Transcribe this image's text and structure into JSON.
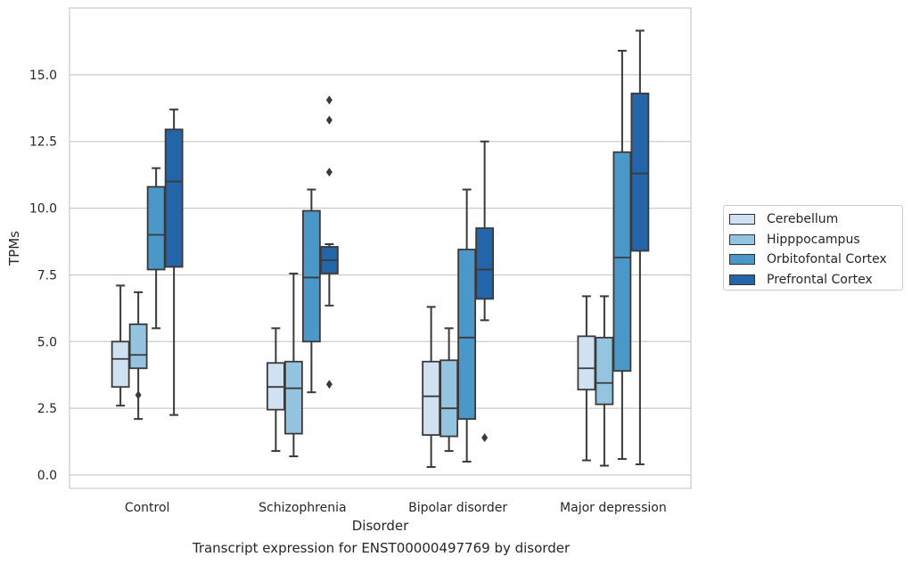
{
  "chart_data": {
    "type": "box",
    "title": "",
    "xlabel": "Disorder",
    "ylabel": "TPMs",
    "ylim": [
      -0.5,
      17.5
    ],
    "yticks": [
      "0.0",
      "2.5",
      "5.0",
      "7.5",
      "10.0",
      "12.5",
      "15.0"
    ],
    "grid": true,
    "legend_position": "right",
    "categories": [
      "Control",
      "Schizophrenia",
      "Bipolar disorder",
      "Major depression"
    ],
    "series": [
      {
        "name": "Cerebellum",
        "color": "#d0e1f2",
        "boxes": [
          {
            "whisker_low": 2.6,
            "q1": 3.3,
            "median": 4.35,
            "q3": 5.0,
            "whisker_high": 7.1,
            "outliers": []
          },
          {
            "whisker_low": 0.9,
            "q1": 2.45,
            "median": 3.3,
            "q3": 4.2,
            "whisker_high": 5.5,
            "outliers": []
          },
          {
            "whisker_low": 0.3,
            "q1": 1.5,
            "median": 2.95,
            "q3": 4.25,
            "whisker_high": 6.3,
            "outliers": []
          },
          {
            "whisker_low": 0.55,
            "q1": 3.2,
            "median": 4.0,
            "q3": 5.2,
            "whisker_high": 6.7,
            "outliers": []
          }
        ]
      },
      {
        "name": "Hipppocampus",
        "color": "#94c4df",
        "boxes": [
          {
            "whisker_low": 2.1,
            "q1": 4.0,
            "median": 4.5,
            "q3": 5.65,
            "whisker_high": 6.85,
            "outliers": [
              3.0
            ]
          },
          {
            "whisker_low": 0.7,
            "q1": 1.55,
            "median": 3.25,
            "q3": 4.25,
            "whisker_high": 7.55,
            "outliers": []
          },
          {
            "whisker_low": 0.9,
            "q1": 1.45,
            "median": 2.5,
            "q3": 4.3,
            "whisker_high": 5.5,
            "outliers": []
          },
          {
            "whisker_low": 0.35,
            "q1": 2.65,
            "median": 3.45,
            "q3": 5.15,
            "whisker_high": 6.7,
            "outliers": []
          }
        ]
      },
      {
        "name": "Orbitofontal Cortex",
        "color": "#4a98c9",
        "boxes": [
          {
            "whisker_low": 5.5,
            "q1": 7.7,
            "median": 9.0,
            "q3": 10.8,
            "whisker_high": 11.5,
            "outliers": []
          },
          {
            "whisker_low": 3.1,
            "q1": 5.0,
            "median": 7.4,
            "q3": 9.9,
            "whisker_high": 10.7,
            "outliers": []
          },
          {
            "whisker_low": 0.5,
            "q1": 2.1,
            "median": 5.15,
            "q3": 8.45,
            "whisker_high": 10.7,
            "outliers": []
          },
          {
            "whisker_low": 0.6,
            "q1": 3.9,
            "median": 8.15,
            "q3": 12.1,
            "whisker_high": 15.9,
            "outliers": []
          }
        ]
      },
      {
        "name": "Prefrontal Cortex",
        "color": "#2464a8",
        "boxes": [
          {
            "whisker_low": 2.25,
            "q1": 7.8,
            "median": 11.0,
            "q3": 12.95,
            "whisker_high": 13.7,
            "outliers": []
          },
          {
            "whisker_low": 6.35,
            "q1": 7.55,
            "median": 8.05,
            "q3": 8.55,
            "whisker_high": 8.65,
            "outliers": [
              3.4,
              11.35,
              13.3,
              14.05
            ]
          },
          {
            "whisker_low": 5.8,
            "q1": 6.6,
            "median": 7.7,
            "q3": 9.25,
            "whisker_high": 12.5,
            "outliers": [
              1.4
            ]
          },
          {
            "whisker_low": 0.4,
            "q1": 8.4,
            "median": 11.3,
            "q3": 14.3,
            "whisker_high": 16.65,
            "outliers": []
          }
        ]
      }
    ],
    "caption": "Transcript expression for ENST00000497769 by disorder"
  }
}
